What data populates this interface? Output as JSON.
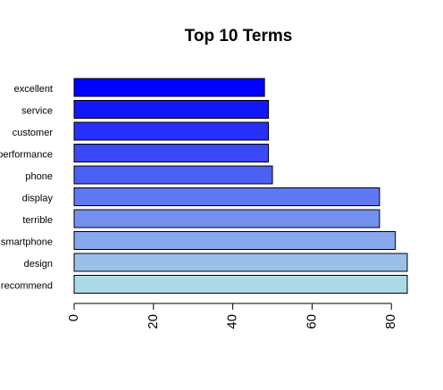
{
  "chart_data": {
    "type": "barh",
    "title": "Top 10 Terms",
    "categories": [
      "excellent",
      "service",
      "customer",
      "performance",
      "phone",
      "display",
      "terrible",
      "smartphone",
      "design",
      "recommend"
    ],
    "values": [
      48,
      49,
      49,
      49,
      50,
      77,
      77,
      81,
      84,
      84
    ],
    "colors": [
      "#0000ff",
      "#1318fc",
      "#2630f9",
      "#3a48f7",
      "#4d60f4",
      "#6078f1",
      "#7390ee",
      "#87a8ec",
      "#9ac0e9",
      "#add8e6"
    ],
    "xlim": [
      0,
      84
    ],
    "xticks": [
      0,
      20,
      40,
      60,
      80
    ]
  }
}
